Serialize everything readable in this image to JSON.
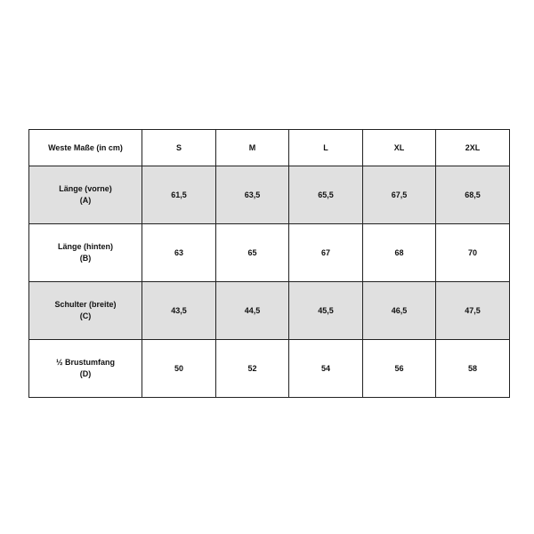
{
  "table": {
    "header": [
      "Weste Maße (in cm)",
      "S",
      "M",
      "L",
      "XL",
      "2XL"
    ],
    "rows": [
      {
        "label": "Länge (vorne)",
        "code": "(A)",
        "values": [
          "61,5",
          "63,5",
          "65,5",
          "67,5",
          "68,5"
        ],
        "shaded": true
      },
      {
        "label": "Länge (hinten)",
        "code": "(B)",
        "values": [
          "63",
          "65",
          "67",
          "68",
          "70"
        ],
        "shaded": false
      },
      {
        "label": "Schulter (breite)",
        "code": "(C)",
        "values": [
          "43,5",
          "44,5",
          "45,5",
          "46,5",
          "47,5"
        ],
        "shaded": true
      },
      {
        "label": "½ Brustumfang",
        "code": "(D)",
        "values": [
          "50",
          "52",
          "54",
          "56",
          "58"
        ],
        "shaded": false
      }
    ],
    "shade_color": "#e0e0e0"
  }
}
